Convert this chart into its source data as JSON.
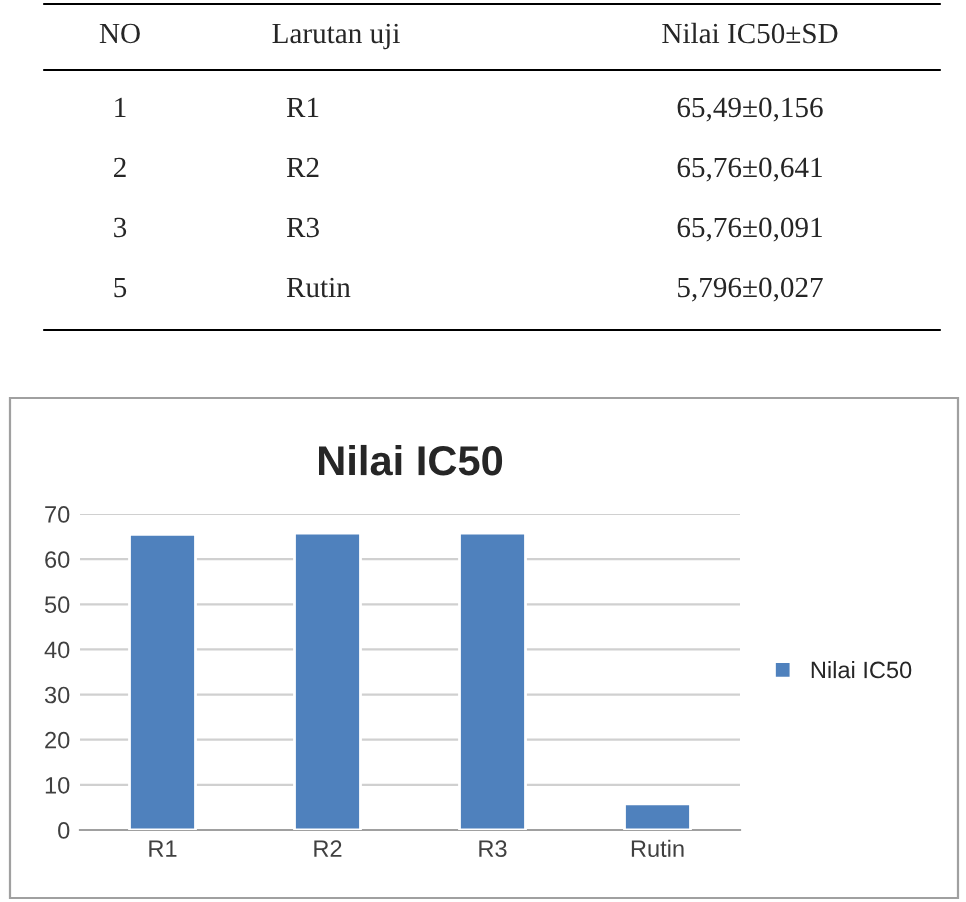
{
  "chart_data": [
    {
      "type": "other",
      "annotations": [
        "NO",
        "Larutan uji",
        "Nilai IC50±SD",
        "1",
        "R1",
        "65,49±0,156",
        "2",
        "R2",
        "65,76±0,641",
        "3",
        "R3",
        "65,76±0,091",
        "5",
        "Rutin",
        "5,796±0,027"
      ]
    },
    {
      "type": "bar",
      "title": "Nilai IC50",
      "categories": [
        "R1",
        "R2",
        "R3",
        "Rutin"
      ],
      "series": [
        {
          "name": "Nilai IC50",
          "color": "#4f81bd",
          "values": [
            65.49,
            65.76,
            65.76,
            5.796
          ]
        }
      ],
      "ylim": [
        0,
        70
      ],
      "yticks": [
        0,
        10,
        20,
        30,
        40,
        50,
        60,
        70
      ],
      "grid": "y",
      "legend": "right"
    }
  ]
}
